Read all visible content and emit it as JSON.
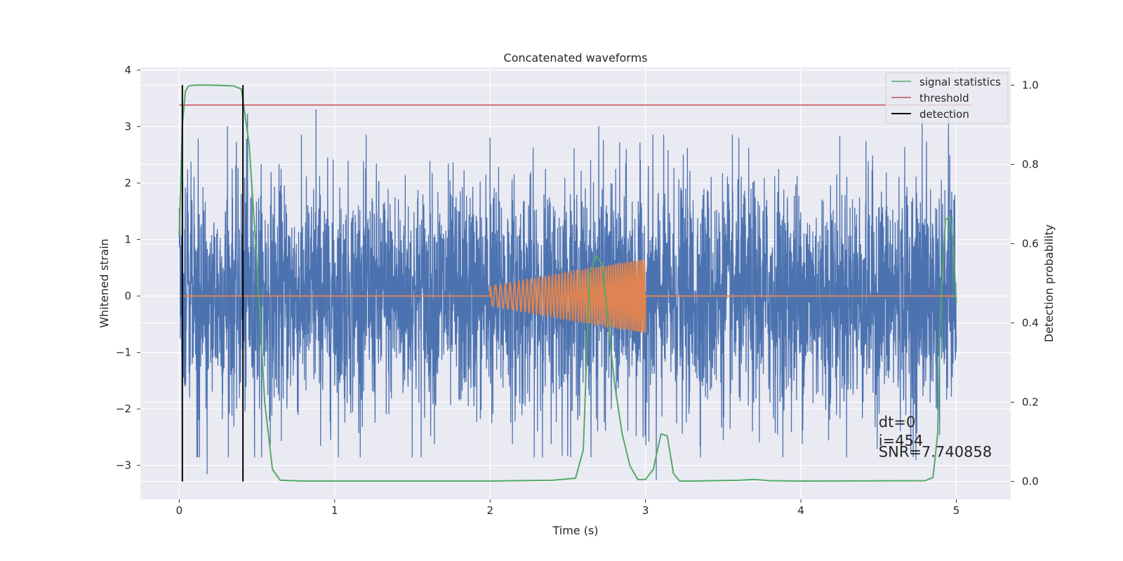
{
  "chart_data": {
    "type": "line",
    "title": "Concatenated waveforms",
    "xlabel": "Time (s)",
    "ylabel": "Whitened strain",
    "ylabel_right": "Detection probability",
    "xlim": [
      -0.25,
      5.35
    ],
    "ylim": [
      -3.6,
      4.05
    ],
    "ylim_right": [
      -0.045,
      1.045
    ],
    "x_ticks": [
      0,
      1,
      2,
      3,
      4,
      5
    ],
    "x_tick_labels": [
      "0",
      "1",
      "2",
      "3",
      "4",
      "5"
    ],
    "y_ticks": [
      -3,
      -2,
      -1,
      0,
      1,
      2,
      3,
      4
    ],
    "y_tick_labels": [
      "−3",
      "−2",
      "−1",
      "0",
      "1",
      "2",
      "3",
      "4"
    ],
    "y_right_ticks": [
      0.0,
      0.2,
      0.4,
      0.6,
      0.8,
      1.0
    ],
    "y_right_tick_labels": [
      "0.0",
      "0.2",
      "0.4",
      "0.6",
      "0.8",
      "1.0"
    ],
    "grid": true,
    "legend_position": "top-right",
    "legend": [
      {
        "label": "signal statistics",
        "color": "#55a868"
      },
      {
        "label": "threshold",
        "color": "#c44e52"
      },
      {
        "label": "detection",
        "color": "#000000"
      }
    ],
    "series": [
      {
        "name": "whitened strain (noise + signal)",
        "axis": "left",
        "color": "#4c72b0",
        "x_range": [
          0,
          5
        ],
        "typical_amplitude": 1.0,
        "peak_values": [
          {
            "x": 0.31,
            "y": 3.0
          },
          {
            "x": 0.44,
            "y": 3.22
          },
          {
            "x": 0.88,
            "y": 3.3
          },
          {
            "x": 2.0,
            "y": 2.8
          },
          {
            "x": 2.7,
            "y": 3.0
          },
          {
            "x": 4.78,
            "y": 3.25
          },
          {
            "x": 4.95,
            "y": 3.3
          },
          {
            "x": 0.18,
            "y": -3.15
          },
          {
            "x": 2.0,
            "y": -3.0
          },
          {
            "x": 3.07,
            "y": -3.25
          },
          {
            "x": 4.74,
            "y": -2.9
          }
        ]
      },
      {
        "name": "injected chirp",
        "axis": "left",
        "color": "#dd8452",
        "x_range": [
          0,
          5
        ],
        "chirp_start": 2.0,
        "chirp_end": 3.0,
        "start_amplitude": 0.18,
        "end_amplitude": 0.65,
        "start_freq_hz": 28,
        "end_freq_hz": 75
      },
      {
        "name": "signal statistics",
        "axis": "right",
        "color": "#55a868",
        "x": [
          0,
          0.02,
          0.04,
          0.06,
          0.1,
          0.2,
          0.35,
          0.4,
          0.45,
          0.5,
          0.55,
          0.6,
          0.65,
          0.8,
          1.5,
          2.0,
          2.4,
          2.55,
          2.6,
          2.64,
          2.68,
          2.72,
          2.76,
          2.8,
          2.85,
          2.9,
          2.95,
          3.0,
          3.05,
          3.1,
          3.14,
          3.18,
          3.22,
          3.3,
          3.6,
          3.7,
          3.8,
          4.0,
          4.8,
          4.85,
          4.88,
          4.9,
          4.93,
          4.96,
          4.98,
          5.0
        ],
        "y": [
          0.62,
          0.9,
          0.985,
          0.998,
          1.0,
          1.0,
          0.998,
          0.99,
          0.85,
          0.55,
          0.2,
          0.03,
          0.003,
          0.001,
          0.001,
          0.001,
          0.003,
          0.008,
          0.08,
          0.52,
          0.57,
          0.55,
          0.4,
          0.25,
          0.12,
          0.04,
          0.005,
          0.005,
          0.03,
          0.12,
          0.115,
          0.02,
          0.001,
          0.001,
          0.003,
          0.005,
          0.002,
          0.001,
          0.002,
          0.01,
          0.12,
          0.45,
          0.66,
          0.67,
          0.6,
          0.45
        ]
      },
      {
        "name": "threshold",
        "axis": "right",
        "color": "#c44e52",
        "x": [
          0,
          5.1
        ],
        "y": [
          0.95,
          0.95
        ]
      },
      {
        "name": "detection",
        "axis": "right",
        "color": "#000000",
        "vertical_lines": [
          0.02,
          0.41
        ],
        "y_range": [
          0.0,
          1.0
        ]
      }
    ],
    "annotations": [
      {
        "text": "dt=0",
        "x": 4.5,
        "y": -2.32
      },
      {
        "text": "i=454",
        "x": 4.5,
        "y": -2.65
      },
      {
        "text": "SNR=7.740858",
        "x": 4.5,
        "y": -2.85
      }
    ]
  }
}
